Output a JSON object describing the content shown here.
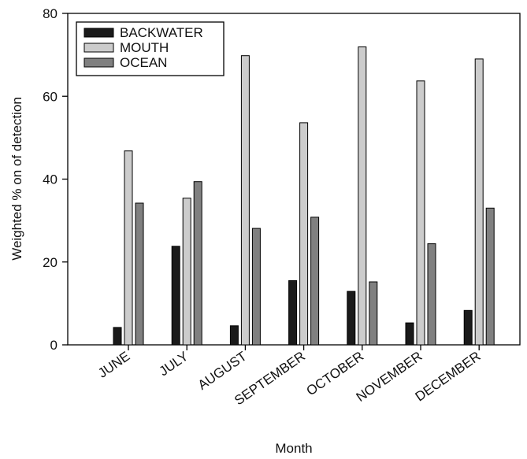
{
  "chart_data": {
    "type": "bar",
    "xlabel": "Month",
    "ylabel": "Weighted % on of detection",
    "ylim": [
      0,
      80
    ],
    "yticks": [
      0,
      20,
      40,
      60,
      80
    ],
    "grid": false,
    "legend_position": "top-left",
    "categories": [
      "JUNE",
      "JULY",
      "AUGUST",
      "SEPTEMBER",
      "OCTOBER",
      "NOVEMBER",
      "DECEMBER"
    ],
    "series": [
      {
        "name": "BACKWATER",
        "color": "#1a1a1a",
        "values": [
          4.2,
          23.8,
          4.6,
          15.5,
          12.9,
          5.3,
          8.3
        ]
      },
      {
        "name": "MOUTH",
        "color": "#cccccc",
        "values": [
          46.8,
          35.4,
          69.8,
          53.6,
          71.9,
          63.7,
          69.0
        ]
      },
      {
        "name": "OCEAN",
        "color": "#808080",
        "values": [
          34.2,
          39.4,
          28.1,
          30.8,
          15.2,
          24.4,
          33.0
        ]
      }
    ]
  }
}
